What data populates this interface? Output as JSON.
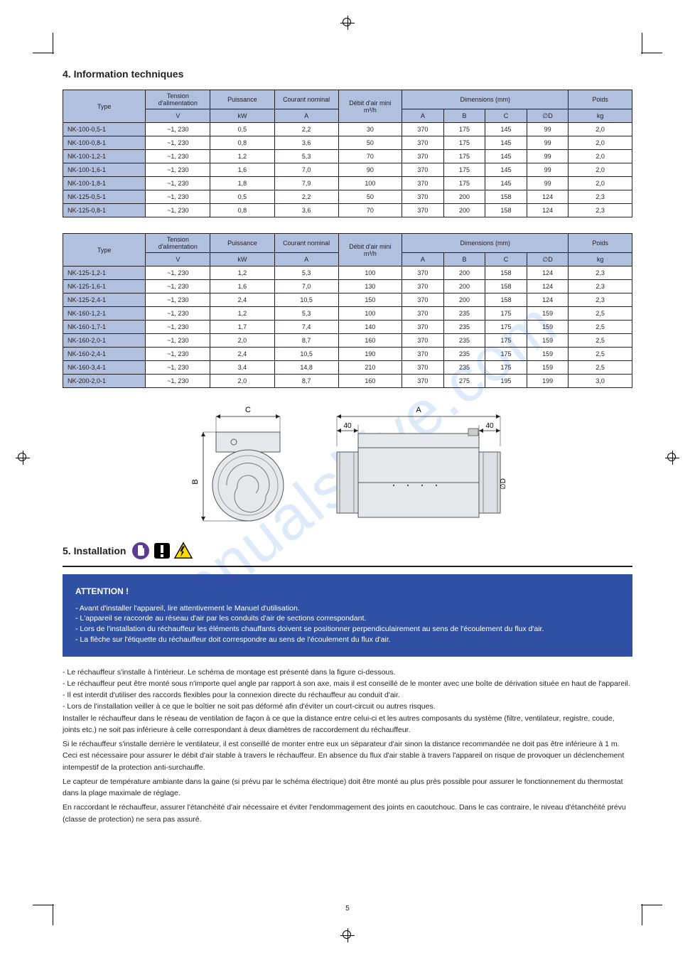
{
  "page": {
    "number": "5",
    "watermark": "manualshive.com"
  },
  "section_title": "4. Information techniques",
  "table1": {
    "headers": {
      "type": "Type",
      "voltage": "Tension d'alimentation",
      "power": "Puissance",
      "current": "Courant nominal",
      "airflow": "Débit d'air mini",
      "dimensions": "Dimensions (mm)",
      "weight": "Poids",
      "v": "V",
      "kw": "kW",
      "a": "A",
      "m3h": "m³/h",
      "A": "A",
      "B": "B",
      "C": "C",
      "D": "∅D",
      "kg": "kg"
    },
    "rows": [
      {
        "type": "NK-100-0,5-1",
        "v": "~1, 230",
        "kw": "0,5",
        "a": "2,2",
        "af": "30",
        "A": "370",
        "B": "175",
        "C": "145",
        "D": "99",
        "kg": "2,0"
      },
      {
        "type": "NK-100-0,8-1",
        "v": "~1, 230",
        "kw": "0,8",
        "a": "3,6",
        "af": "50",
        "A": "370",
        "B": "175",
        "C": "145",
        "D": "99",
        "kg": "2,0"
      },
      {
        "type": "NK-100-1,2-1",
        "v": "~1, 230",
        "kw": "1,2",
        "a": "5,3",
        "af": "70",
        "A": "370",
        "B": "175",
        "C": "145",
        "D": "99",
        "kg": "2,0"
      },
      {
        "type": "NK-100-1,6-1",
        "v": "~1, 230",
        "kw": "1,6",
        "a": "7,0",
        "af": "90",
        "A": "370",
        "B": "175",
        "C": "145",
        "D": "99",
        "kg": "2,0"
      },
      {
        "type": "NK-100-1,8-1",
        "v": "~1, 230",
        "kw": "1,8",
        "a": "7,9",
        "af": "100",
        "A": "370",
        "B": "175",
        "C": "145",
        "D": "99",
        "kg": "2,0"
      },
      {
        "type": "NK-125-0,5-1",
        "v": "~1, 230",
        "kw": "0,5",
        "a": "2,2",
        "af": "50",
        "A": "370",
        "B": "200",
        "C": "158",
        "D": "124",
        "kg": "2,3"
      },
      {
        "type": "NK-125-0,8-1",
        "v": "~1, 230",
        "kw": "0,8",
        "a": "3,6",
        "af": "70",
        "A": "370",
        "B": "200",
        "C": "158",
        "D": "124",
        "kg": "2,3"
      }
    ]
  },
  "table2": {
    "headers": {
      "type": "Type",
      "voltage": "Tension d'alimentation",
      "power": "Puissance",
      "current": "Courant nominal",
      "airflow": "Débit d'air mini",
      "dimensions": "Dimensions (mm)",
      "weight": "Poids",
      "v": "V",
      "kw": "kW",
      "a": "A",
      "m3h": "m³/h",
      "A": "A",
      "B": "B",
      "C": "C",
      "D": "∅D",
      "kg": "kg"
    },
    "rows": [
      {
        "type": "NK-125-1,2-1",
        "v": "~1, 230",
        "kw": "1,2",
        "a": "5,3",
        "af": "100",
        "A": "370",
        "B": "200",
        "C": "158",
        "D": "124",
        "kg": "2,3"
      },
      {
        "type": "NK-125-1,6-1",
        "v": "~1, 230",
        "kw": "1,6",
        "a": "7,0",
        "af": "130",
        "A": "370",
        "B": "200",
        "C": "158",
        "D": "124",
        "kg": "2,3"
      },
      {
        "type": "NK-125-2,4-1",
        "v": "~1, 230",
        "kw": "2,4",
        "a": "10,5",
        "af": "150",
        "A": "370",
        "B": "200",
        "C": "158",
        "D": "124",
        "kg": "2,3"
      },
      {
        "type": "NK-160-1,2-1",
        "v": "~1, 230",
        "kw": "1,2",
        "a": "5,3",
        "af": "100",
        "A": "370",
        "B": "235",
        "C": "175",
        "D": "159",
        "kg": "2,5"
      },
      {
        "type": "NK-160-1,7-1",
        "v": "~1, 230",
        "kw": "1,7",
        "a": "7,4",
        "af": "140",
        "A": "370",
        "B": "235",
        "C": "175",
        "D": "159",
        "kg": "2,5"
      },
      {
        "type": "NK-160-2,0-1",
        "v": "~1, 230",
        "kw": "2,0",
        "a": "8,7",
        "af": "160",
        "A": "370",
        "B": "235",
        "C": "175",
        "D": "159",
        "kg": "2,5"
      },
      {
        "type": "NK-160-2,4-1",
        "v": "~1, 230",
        "kw": "2,4",
        "a": "10,5",
        "af": "190",
        "A": "370",
        "B": "235",
        "C": "175",
        "D": "159",
        "kg": "2,5"
      },
      {
        "type": "NK-160-3,4-1",
        "v": "~1, 230",
        "kw": "3,4",
        "a": "14,8",
        "af": "210",
        "A": "370",
        "B": "235",
        "C": "175",
        "D": "159",
        "kg": "2,5"
      },
      {
        "type": "NK-200-2,0-1",
        "v": "~1, 230",
        "kw": "2,0",
        "a": "8,7",
        "af": "160",
        "A": "370",
        "B": "275",
        "C": "195",
        "D": "199",
        "kg": "3,0"
      }
    ]
  },
  "diagram": {
    "labels": {
      "A": "A",
      "B": "B",
      "C": "C",
      "D": "∅D",
      "forty_left": "40",
      "forty_right": "40"
    }
  },
  "install": {
    "heading": "5. Installation",
    "icons": [
      "gloves-icon",
      "attention-icon",
      "voltage-icon"
    ]
  },
  "warning_box": {
    "title": "ATTENTION !",
    "items": [
      "Avant d'installer l'appareil, lire attentivement le Manuel d'utilisation.",
      "L'appareil se raccorde au réseau d'air par les conduits d'air de sections correspondant.",
      "Lors de l'installation du réchauffeur les éléments chauffants doivent se positionner perpendiculairement au sens de l'écoulement du flux d'air.",
      "La flèche sur l'étiquette du réchauffeur doit correspondre au sens de l'écoulement du flux d'air."
    ]
  },
  "body": {
    "items": [
      "Le réchauffeur s'installe à l'intérieur. Le schéma de montage est présenté dans la figure ci-dessous.",
      "Le réchauffeur peut être monté sous n'importe quel angle par rapport à son axe, mais il est conseillé de le monter avec une boîte de dérivation située en haut de l'appareil.",
      "Il est interdit d'utiliser des raccords flexibles pour la connexion directe du réchauffeur au conduit d'air.",
      "Lors de l'installation veiller à ce que le boîtier ne soit pas déformé afin d'éviter un court-circuit ou autres risques."
    ],
    "p1": "Installer le réchauffeur dans le réseau de ventilation de façon à ce que la distance entre celui-ci et les autres composants du système (filtre, ventilateur, registre, coude, joints etc.) ne soit pas inférieure à celle correspondant à deux diamètres de raccordement du réchauffeur.",
    "p2": "Si le réchauffeur s'installe derrière le ventilateur, il est conseillé de monter entre eux un séparateur d'air sinon la distance recommandée ne doit pas être inférieure à 1 m. Ceci est nécessaire pour assurer le débit d'air stable à travers le réchauffeur. En absence du flux d'air stable à travers l'appareil on risque de provoquer un déclenchement intempestif de la protection anti-surchauffe.",
    "p3": "Le capteur de température ambiante dans la gaine (si prévu par le schéma électrique) doit être monté au plus près possible pour assurer le fonctionnement du thermostat dans la plage maximale de réglage.",
    "p4": "En raccordant le réchauffeur, assurer l'étanchéité d'air nécessaire et éviter l'endommagement des joints en caoutchouc. Dans le cas contraire, le niveau d'étanchéité prévu (classe de protection) ne sera pas assuré."
  },
  "colors": {
    "header_bg": "#b2c0df",
    "border": "#231f20",
    "blue_box": "#3051a3",
    "white": "#ffffff",
    "icon_purple": "#5c3b97",
    "icon_yellow": "#fddc00",
    "icon_black": "#000000",
    "watermark": "#4b8de0"
  }
}
